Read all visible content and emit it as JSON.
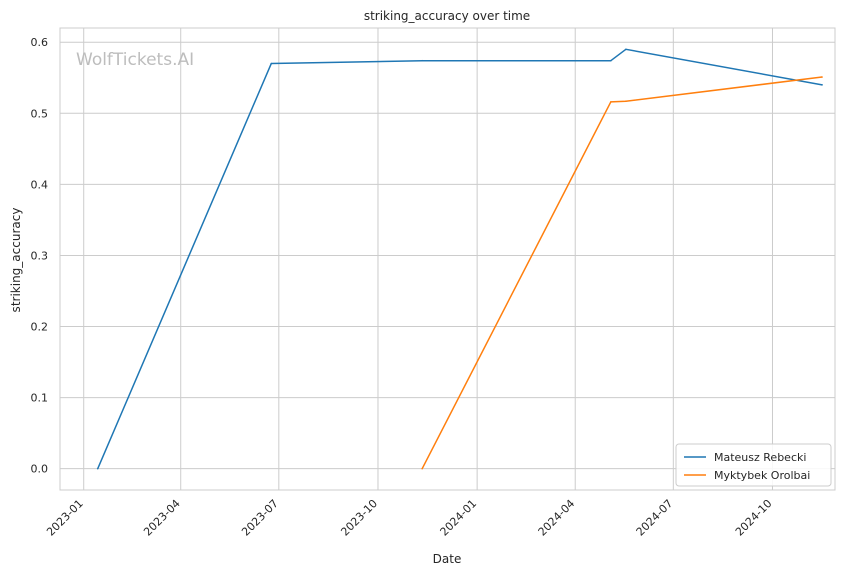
{
  "chart_data": {
    "type": "line",
    "title": "striking_accuracy over time",
    "xlabel": "Date",
    "ylabel": "striking_accuracy",
    "watermark": "WolfTickets.AI",
    "grid": true,
    "legend_position": "bottom-right",
    "xlim": [
      "2022-12-10",
      "2024-11-28"
    ],
    "ylim": [
      -0.03,
      0.62
    ],
    "x_ticks": [
      "2023-01",
      "2023-04",
      "2023-07",
      "2023-10",
      "2024-01",
      "2024-04",
      "2024-07",
      "2024-10"
    ],
    "y_ticks": [
      "0.0",
      "0.1",
      "0.2",
      "0.3",
      "0.4",
      "0.5",
      "0.6"
    ],
    "series": [
      {
        "name": "Mateusz Rebecki",
        "color": "#1f77b4",
        "points": [
          {
            "x": "2023-01-14",
            "y": 0.0
          },
          {
            "x": "2023-06-24",
            "y": 0.57
          },
          {
            "x": "2023-11-11",
            "y": 0.574
          },
          {
            "x": "2024-05-04",
            "y": 0.574
          },
          {
            "x": "2024-05-18",
            "y": 0.59
          },
          {
            "x": "2024-11-16",
            "y": 0.54
          }
        ]
      },
      {
        "name": "Myktybek Orolbai",
        "color": "#ff7f0e",
        "points": [
          {
            "x": "2023-11-11",
            "y": 0.0
          },
          {
            "x": "2024-05-04",
            "y": 0.516
          },
          {
            "x": "2024-05-18",
            "y": 0.517
          },
          {
            "x": "2024-11-16",
            "y": 0.551
          }
        ]
      }
    ]
  }
}
